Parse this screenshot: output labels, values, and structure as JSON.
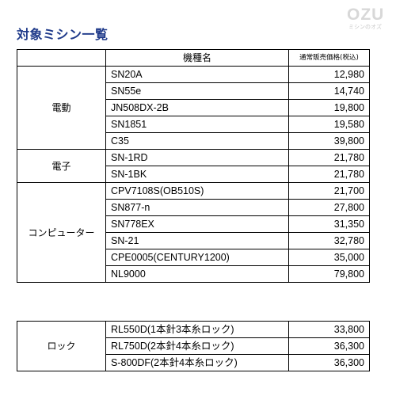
{
  "page": {
    "title": "対象ミシン一覧",
    "logo": {
      "main": "OZU",
      "sub": "ミシンのオズ"
    }
  },
  "table_header": {
    "category": "",
    "model": "機種名",
    "price": "通常販売価格(税込)"
  },
  "groups": [
    {
      "category": "電動",
      "rows": [
        {
          "model": "SN20A",
          "price": "12,980"
        },
        {
          "model": "SN55e",
          "price": "14,740"
        },
        {
          "model": "JN508DX-2B",
          "price": "19,800"
        },
        {
          "model": "SN1851",
          "price": "19,580"
        },
        {
          "model": "C35",
          "price": "39,800"
        }
      ]
    },
    {
      "category": "電子",
      "rows": [
        {
          "model": "SN-1RD",
          "price": "21,780"
        },
        {
          "model": "SN-1BK",
          "price": "21,780"
        }
      ]
    },
    {
      "category": "コンピューター",
      "rows": [
        {
          "model": "CPV7108S(OB510S)",
          "price": "21,700"
        },
        {
          "model": "SN877-n",
          "price": "27,800"
        },
        {
          "model": "SN778EX",
          "price": "31,350"
        },
        {
          "model": "SN-21",
          "price": "32,780"
        },
        {
          "model": "CPE0005(CENTURY1200)",
          "price": "35,000"
        },
        {
          "model": "NL9000",
          "price": "79,800"
        }
      ]
    }
  ],
  "lock_group": {
    "category": "ロック",
    "rows": [
      {
        "model": "RL550D(1本針3本糸ロック)",
        "price": "33,800"
      },
      {
        "model": "RL750D(2本針4本糸ロック)",
        "price": "36,300"
      },
      {
        "model": "S-800DF(2本針4本糸ロック)",
        "price": "36,300"
      }
    ]
  }
}
